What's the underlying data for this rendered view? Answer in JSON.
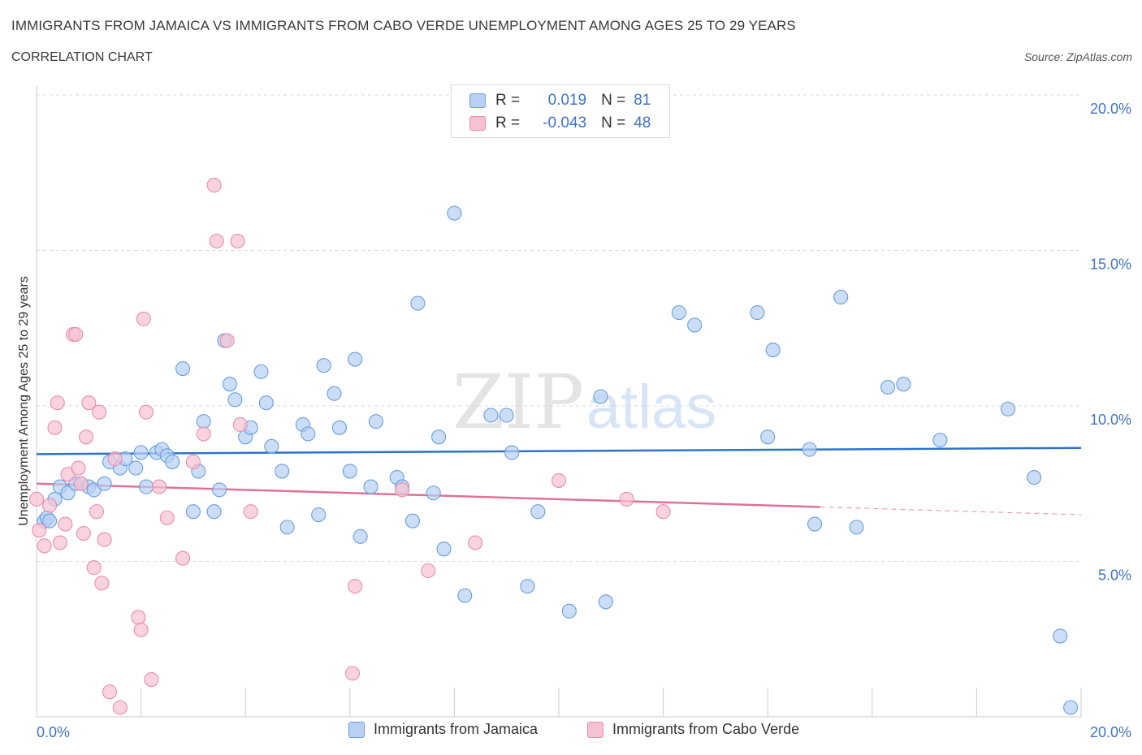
{
  "header": {
    "title": "IMMIGRANTS FROM JAMAICA VS IMMIGRANTS FROM CABO VERDE UNEMPLOYMENT AMONG AGES 25 TO 29 YEARS",
    "subtitle": "CORRELATION CHART",
    "source": "Source: ZipAtlas.com"
  },
  "watermark": {
    "zip": "ZIP",
    "atlas": "atlas"
  },
  "colors": {
    "blue_fill": "#b7d0f3",
    "blue_stroke": "#6a9ede",
    "blue_line": "#2f72c9",
    "pink_fill": "#f6c2d2",
    "pink_stroke": "#e98daa",
    "pink_line": "#e0719a",
    "tick_text": "#3f73c8",
    "grid": "#d9d9d9"
  },
  "legend_top": {
    "rows": [
      {
        "r_label": "R =",
        "r_value": "0.019",
        "n_label": "N =",
        "n_value": "81"
      },
      {
        "r_label": "R =",
        "r_value": "-0.043",
        "n_label": "N =",
        "n_value": "48"
      }
    ]
  },
  "legend_bottom": [
    {
      "label": "Immigrants from Jamaica"
    },
    {
      "label": "Immigrants from Cabo Verde"
    }
  ],
  "chart_data": {
    "type": "scatter",
    "title": "IMMIGRANTS FROM JAMAICA VS IMMIGRANTS FROM CABO VERDE UNEMPLOYMENT AMONG AGES 25 TO 29 YEARS",
    "xlabel": "",
    "ylabel": "Unemployment Among Ages 25 to 29 years",
    "xlim": [
      0,
      20
    ],
    "ylim": [
      0,
      20
    ],
    "x_tick_labels": [
      "0.0%",
      "20.0%"
    ],
    "y_ticks": [
      5,
      10,
      15,
      20
    ],
    "y_tick_labels": [
      "5.0%",
      "10.0%",
      "15.0%",
      "20.0%"
    ],
    "grid": true,
    "series": [
      {
        "name": "Immigrants from Jamaica",
        "r": 0.019,
        "n": 81,
        "trend": {
          "x": [
            0,
            20
          ],
          "y": [
            8.45,
            8.65
          ]
        },
        "points": [
          [
            0.15,
            6.3
          ],
          [
            0.2,
            6.4
          ],
          [
            0.25,
            6.3
          ],
          [
            0.35,
            7.0
          ],
          [
            0.45,
            7.4
          ],
          [
            0.6,
            7.2
          ],
          [
            0.75,
            7.5
          ],
          [
            0.85,
            7.5
          ],
          [
            1.0,
            7.4
          ],
          [
            1.1,
            7.3
          ],
          [
            1.3,
            7.5
          ],
          [
            1.4,
            8.2
          ],
          [
            1.6,
            8.0
          ],
          [
            1.7,
            8.3
          ],
          [
            1.9,
            8.0
          ],
          [
            2.0,
            8.5
          ],
          [
            2.1,
            7.4
          ],
          [
            2.3,
            8.5
          ],
          [
            2.4,
            8.6
          ],
          [
            2.5,
            8.4
          ],
          [
            2.6,
            8.2
          ],
          [
            2.8,
            11.2
          ],
          [
            3.0,
            6.6
          ],
          [
            3.1,
            7.9
          ],
          [
            3.2,
            9.5
          ],
          [
            3.4,
            6.6
          ],
          [
            3.5,
            7.3
          ],
          [
            3.6,
            12.1
          ],
          [
            3.7,
            10.7
          ],
          [
            3.8,
            10.2
          ],
          [
            4.0,
            9.0
          ],
          [
            4.1,
            9.3
          ],
          [
            4.3,
            11.1
          ],
          [
            4.4,
            10.1
          ],
          [
            4.5,
            8.7
          ],
          [
            4.7,
            7.9
          ],
          [
            4.8,
            6.1
          ],
          [
            5.1,
            9.4
          ],
          [
            5.2,
            9.1
          ],
          [
            5.4,
            6.5
          ],
          [
            5.5,
            11.3
          ],
          [
            5.7,
            10.4
          ],
          [
            5.8,
            9.3
          ],
          [
            6.0,
            7.9
          ],
          [
            6.1,
            11.5
          ],
          [
            6.2,
            5.8
          ],
          [
            6.4,
            7.4
          ],
          [
            6.5,
            9.5
          ],
          [
            6.9,
            7.7
          ],
          [
            7.0,
            7.4
          ],
          [
            7.2,
            6.3
          ],
          [
            7.3,
            13.3
          ],
          [
            7.6,
            7.2
          ],
          [
            7.7,
            9.0
          ],
          [
            7.8,
            5.4
          ],
          [
            8.0,
            16.2
          ],
          [
            8.2,
            3.9
          ],
          [
            8.7,
            9.7
          ],
          [
            9.0,
            9.7
          ],
          [
            9.1,
            8.5
          ],
          [
            9.4,
            4.2
          ],
          [
            9.6,
            6.6
          ],
          [
            10.2,
            3.4
          ],
          [
            10.8,
            10.3
          ],
          [
            10.9,
            3.7
          ],
          [
            12.3,
            13.0
          ],
          [
            12.6,
            12.6
          ],
          [
            13.8,
            13.0
          ],
          [
            14.0,
            9.0
          ],
          [
            14.1,
            11.8
          ],
          [
            14.8,
            8.6
          ],
          [
            14.9,
            6.2
          ],
          [
            15.4,
            13.5
          ],
          [
            15.7,
            6.1
          ],
          [
            16.3,
            10.6
          ],
          [
            16.6,
            10.7
          ],
          [
            17.3,
            8.9
          ],
          [
            18.6,
            9.9
          ],
          [
            19.1,
            7.7
          ],
          [
            19.6,
            2.6
          ],
          [
            19.8,
            0.3
          ]
        ]
      },
      {
        "name": "Immigrants from Cabo Verde",
        "r": -0.043,
        "n": 48,
        "trend": {
          "x": [
            0,
            15
          ],
          "y": [
            7.5,
            6.75
          ]
        },
        "trend_dashed": {
          "x": [
            15,
            20
          ],
          "y": [
            6.75,
            6.5
          ]
        },
        "points": [
          [
            0.0,
            7.0
          ],
          [
            0.05,
            6.0
          ],
          [
            0.15,
            5.5
          ],
          [
            0.25,
            6.8
          ],
          [
            0.35,
            9.3
          ],
          [
            0.4,
            10.1
          ],
          [
            0.45,
            5.6
          ],
          [
            0.55,
            6.2
          ],
          [
            0.6,
            7.8
          ],
          [
            0.7,
            12.3
          ],
          [
            0.75,
            12.3
          ],
          [
            0.8,
            8.0
          ],
          [
            0.85,
            7.5
          ],
          [
            0.9,
            5.9
          ],
          [
            0.95,
            9.0
          ],
          [
            1.0,
            10.1
          ],
          [
            1.1,
            4.8
          ],
          [
            1.15,
            6.6
          ],
          [
            1.2,
            9.8
          ],
          [
            1.25,
            4.3
          ],
          [
            1.3,
            5.7
          ],
          [
            1.4,
            0.8
          ],
          [
            1.5,
            8.3
          ],
          [
            1.6,
            0.3
          ],
          [
            1.95,
            3.2
          ],
          [
            2.0,
            2.8
          ],
          [
            2.05,
            12.8
          ],
          [
            2.1,
            9.8
          ],
          [
            2.2,
            1.2
          ],
          [
            2.35,
            7.4
          ],
          [
            2.5,
            6.4
          ],
          [
            2.8,
            5.1
          ],
          [
            3.0,
            8.2
          ],
          [
            3.2,
            9.1
          ],
          [
            3.4,
            17.1
          ],
          [
            3.45,
            15.3
          ],
          [
            3.65,
            12.1
          ],
          [
            3.85,
            15.3
          ],
          [
            3.9,
            9.4
          ],
          [
            4.1,
            6.6
          ],
          [
            6.05,
            1.4
          ],
          [
            6.1,
            4.2
          ],
          [
            7.5,
            4.7
          ],
          [
            8.4,
            5.6
          ],
          [
            10.0,
            7.6
          ],
          [
            11.3,
            7.0
          ],
          [
            12.0,
            6.6
          ],
          [
            7.0,
            7.3
          ]
        ]
      }
    ]
  }
}
